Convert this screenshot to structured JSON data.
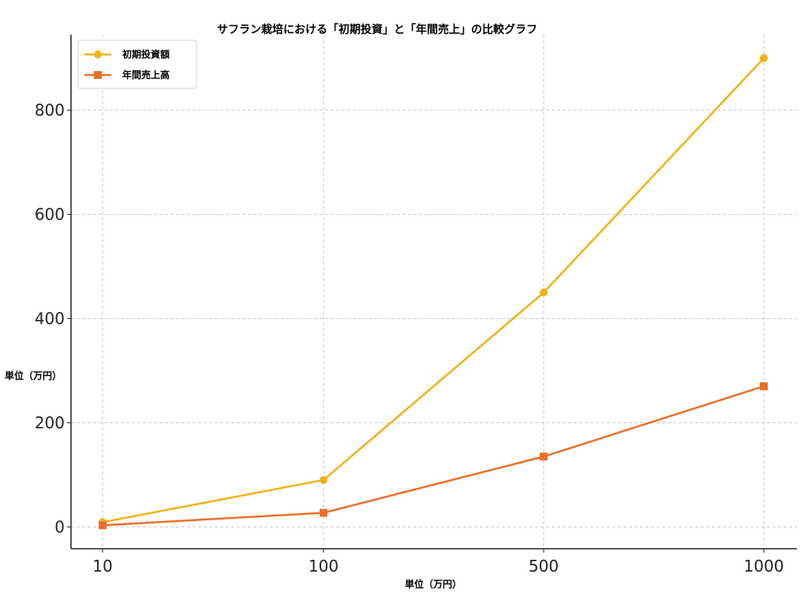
{
  "chart_data": {
    "type": "line",
    "title": "サフラン栽培における「初期投資」と「年間売上」の比較グラフ",
    "xlabel": "単位（万円）",
    "ylabel": "単位（万円）",
    "categories": [
      "10",
      "100",
      "500",
      "1000"
    ],
    "y_ticks": [
      0,
      200,
      400,
      600,
      800
    ],
    "ylim": [
      -42,
      945
    ],
    "grid": true,
    "legend_position": "top-left",
    "series": [
      {
        "name": "初期投資額",
        "values": [
          9,
          90,
          450,
          900
        ],
        "color": "#f0b21a",
        "marker": "circle"
      },
      {
        "name": "年間売上高",
        "values": [
          3,
          27,
          135,
          270
        ],
        "color": "#e8712c",
        "marker": "square"
      }
    ]
  }
}
